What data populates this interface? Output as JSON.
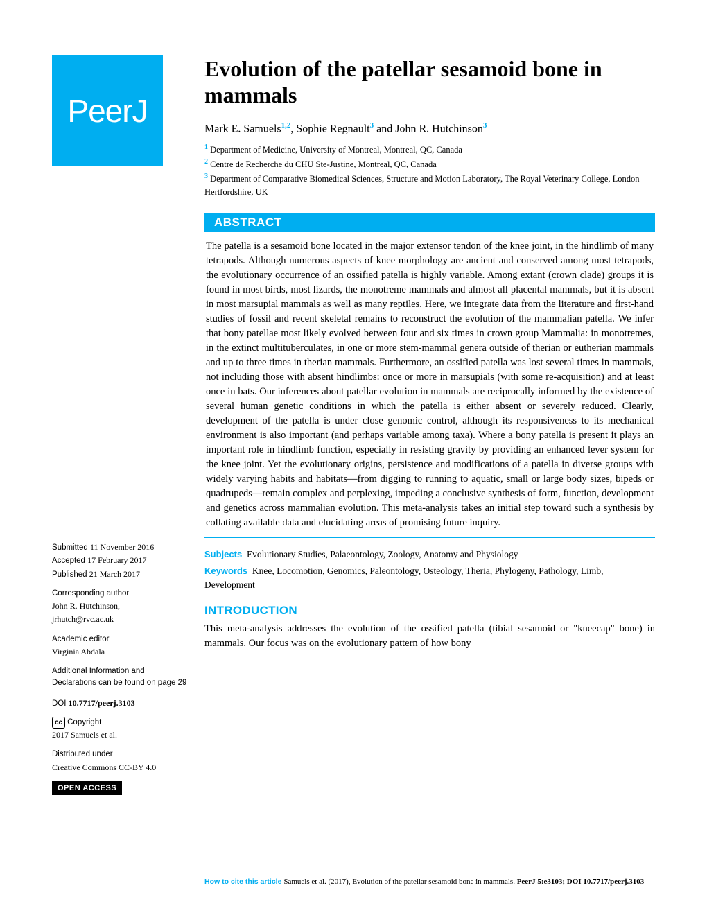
{
  "logo": {
    "text": "PeerJ"
  },
  "title": "Evolution of the patellar sesamoid bone in mammals",
  "authors": [
    {
      "name": "Mark E. Samuels",
      "sup": "1,2"
    },
    {
      "name": "Sophie Regnault",
      "sup": "3"
    },
    {
      "name": "John R. Hutchinson",
      "sup": "3"
    }
  ],
  "affiliations": [
    {
      "num": "1",
      "text": "Department of Medicine, University of Montreal, Montreal, QC, Canada"
    },
    {
      "num": "2",
      "text": "Centre de Recherche du CHU Ste-Justine, Montreal, QC, Canada"
    },
    {
      "num": "3",
      "text": "Department of Comparative Biomedical Sciences, Structure and Motion Laboratory, The Royal Veterinary College, London Hertfordshire, UK"
    }
  ],
  "abstract": {
    "heading": "ABSTRACT",
    "text": "The patella is a sesamoid bone located in the major extensor tendon of the knee joint, in the hindlimb of many tetrapods. Although numerous aspects of knee morphology are ancient and conserved among most tetrapods, the evolutionary occurrence of an ossified patella is highly variable. Among extant (crown clade) groups it is found in most birds, most lizards, the monotreme mammals and almost all placental mammals, but it is absent in most marsupial mammals as well as many reptiles. Here, we integrate data from the literature and first-hand studies of fossil and recent skeletal remains to reconstruct the evolution of the mammalian patella. We infer that bony patellae most likely evolved between four and six times in crown group Mammalia: in monotremes, in the extinct multituberculates, in one or more stem-mammal genera outside of therian or eutherian mammals and up to three times in therian mammals. Furthermore, an ossified patella was lost several times in mammals, not including those with absent hindlimbs: once or more in marsupials (with some re-acquisition) and at least once in bats. Our inferences about patellar evolution in mammals are reciprocally informed by the existence of several human genetic conditions in which the patella is either absent or severely reduced. Clearly, development of the patella is under close genomic control, although its responsiveness to its mechanical environment is also important (and perhaps variable among taxa). Where a bony patella is present it plays an important role in hindlimb function, especially in resisting gravity by providing an enhanced lever system for the knee joint. Yet the evolutionary origins, persistence and modifications of a patella in diverse groups with widely varying habits and habitats—from digging to running to aquatic, small or large body sizes, bipeds or quadrupeds—remain complex and perplexing, impeding a conclusive synthesis of form, function, development and genetics across mammalian evolution. This meta-analysis takes an initial step toward such a synthesis by collating available data and elucidating areas of promising future inquiry."
  },
  "subjects": {
    "label": "Subjects",
    "text": "Evolutionary Studies, Palaeontology, Zoology, Anatomy and Physiology"
  },
  "keywords": {
    "label": "Keywords",
    "text": "Knee, Locomotion, Genomics, Paleontology, Osteology, Theria, Phylogeny, Pathology, Limb, Development"
  },
  "introduction": {
    "heading": "INTRODUCTION",
    "text": "This meta-analysis addresses the evolution of the ossified patella (tibial sesamoid or \"kneecap\" bone) in mammals. Our focus was on the evolutionary pattern of how bony"
  },
  "sidebar": {
    "submitted": {
      "label": "Submitted ",
      "value": "11 November 2016"
    },
    "accepted": {
      "label": "Accepted ",
      "value": "17 February 2017"
    },
    "published": {
      "label": "Published ",
      "value": "21 March 2017"
    },
    "corresponding": {
      "label": "Corresponding author",
      "name": "John R. Hutchinson,",
      "email": "jrhutch@rvc.ac.uk"
    },
    "editor": {
      "label": "Academic editor",
      "name": "Virginia Abdala"
    },
    "additional": {
      "text": "Additional Information and Declarations can be found on page 29"
    },
    "doi": {
      "label": "DOI ",
      "value": "10.7717/peerj.3103"
    },
    "copyright": {
      "label": "Copyright",
      "value": "2017 Samuels et al."
    },
    "distributed": {
      "label": "Distributed under",
      "value": "Creative Commons CC-BY 4.0"
    },
    "openaccess": "OPEN ACCESS"
  },
  "citation": {
    "label": "How to cite this article ",
    "text": "Samuels et al. (2017), Evolution of the patellar sesamoid bone in mammals. ",
    "journal": "PeerJ ",
    "ref": "5:e3103; DOI 10.7717/peerj.3103"
  },
  "colors": {
    "brand": "#00aef0",
    "black": "#000000",
    "white": "#ffffff"
  }
}
